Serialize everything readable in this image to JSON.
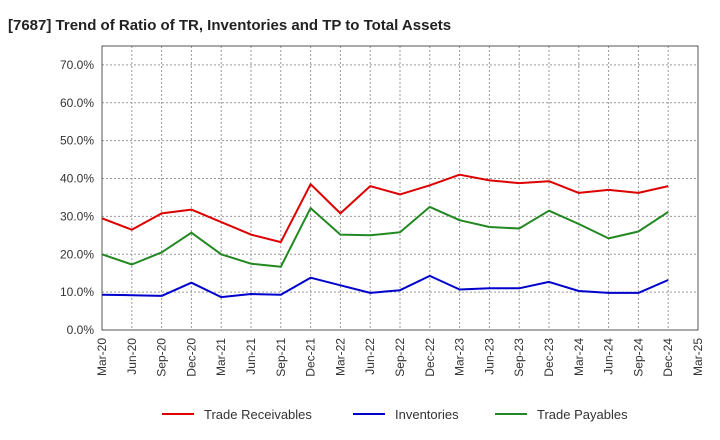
{
  "chart_data": {
    "type": "line",
    "title": "[7687]  Trend of Ratio of TR, Inventories and TP to Total Assets",
    "xlabel": "",
    "ylabel": "",
    "ylim": [
      0,
      0.75
    ],
    "yticks": [
      0,
      0.1,
      0.2,
      0.3,
      0.4,
      0.5,
      0.6,
      0.7
    ],
    "ytick_labels": [
      "0.0%",
      "10.0%",
      "20.0%",
      "30.0%",
      "40.0%",
      "50.0%",
      "60.0%",
      "70.0%"
    ],
    "x_tick_labels": [
      "Mar-20",
      "Jun-20",
      "Sep-20",
      "Dec-20",
      "Mar-21",
      "Jun-21",
      "Sep-21",
      "Dec-21",
      "Mar-22",
      "Jun-22",
      "Sep-22",
      "Dec-22",
      "Mar-23",
      "Jun-23",
      "Sep-23",
      "Dec-23",
      "Mar-24",
      "Jun-24",
      "Sep-24",
      "Dec-24",
      "Mar-25"
    ],
    "x": [
      "Mar-20",
      "Jun-20",
      "Sep-20",
      "Dec-20",
      "Mar-21",
      "Jun-21",
      "Sep-21",
      "Dec-21",
      "Mar-22",
      "Jun-22",
      "Sep-22",
      "Dec-22",
      "Mar-23",
      "Jun-23",
      "Sep-23",
      "Dec-23",
      "Mar-24",
      "Jun-24",
      "Sep-24",
      "Dec-24"
    ],
    "grid": true,
    "legend_position": "bottom",
    "series": [
      {
        "name": "Trade Receivables",
        "color": "#dd0000",
        "values": [
          0.295,
          0.265,
          0.308,
          0.318,
          0.285,
          0.252,
          0.232,
          0.385,
          0.308,
          0.38,
          0.358,
          0.382,
          0.41,
          0.395,
          0.388,
          0.393,
          0.362,
          0.37,
          0.362,
          0.38
        ]
      },
      {
        "name": "Inventories",
        "color": "#0000cc",
        "values": [
          0.093,
          0.092,
          0.09,
          0.125,
          0.087,
          0.095,
          0.093,
          0.138,
          0.118,
          0.098,
          0.105,
          0.143,
          0.107,
          0.11,
          0.11,
          0.127,
          0.103,
          0.098,
          0.098,
          0.132
        ]
      },
      {
        "name": "Trade Payables",
        "color": "#228822",
        "values": [
          0.2,
          0.173,
          0.205,
          0.257,
          0.2,
          0.175,
          0.167,
          0.322,
          0.252,
          0.25,
          0.258,
          0.325,
          0.29,
          0.272,
          0.268,
          0.315,
          0.28,
          0.242,
          0.26,
          0.312
        ]
      }
    ]
  }
}
